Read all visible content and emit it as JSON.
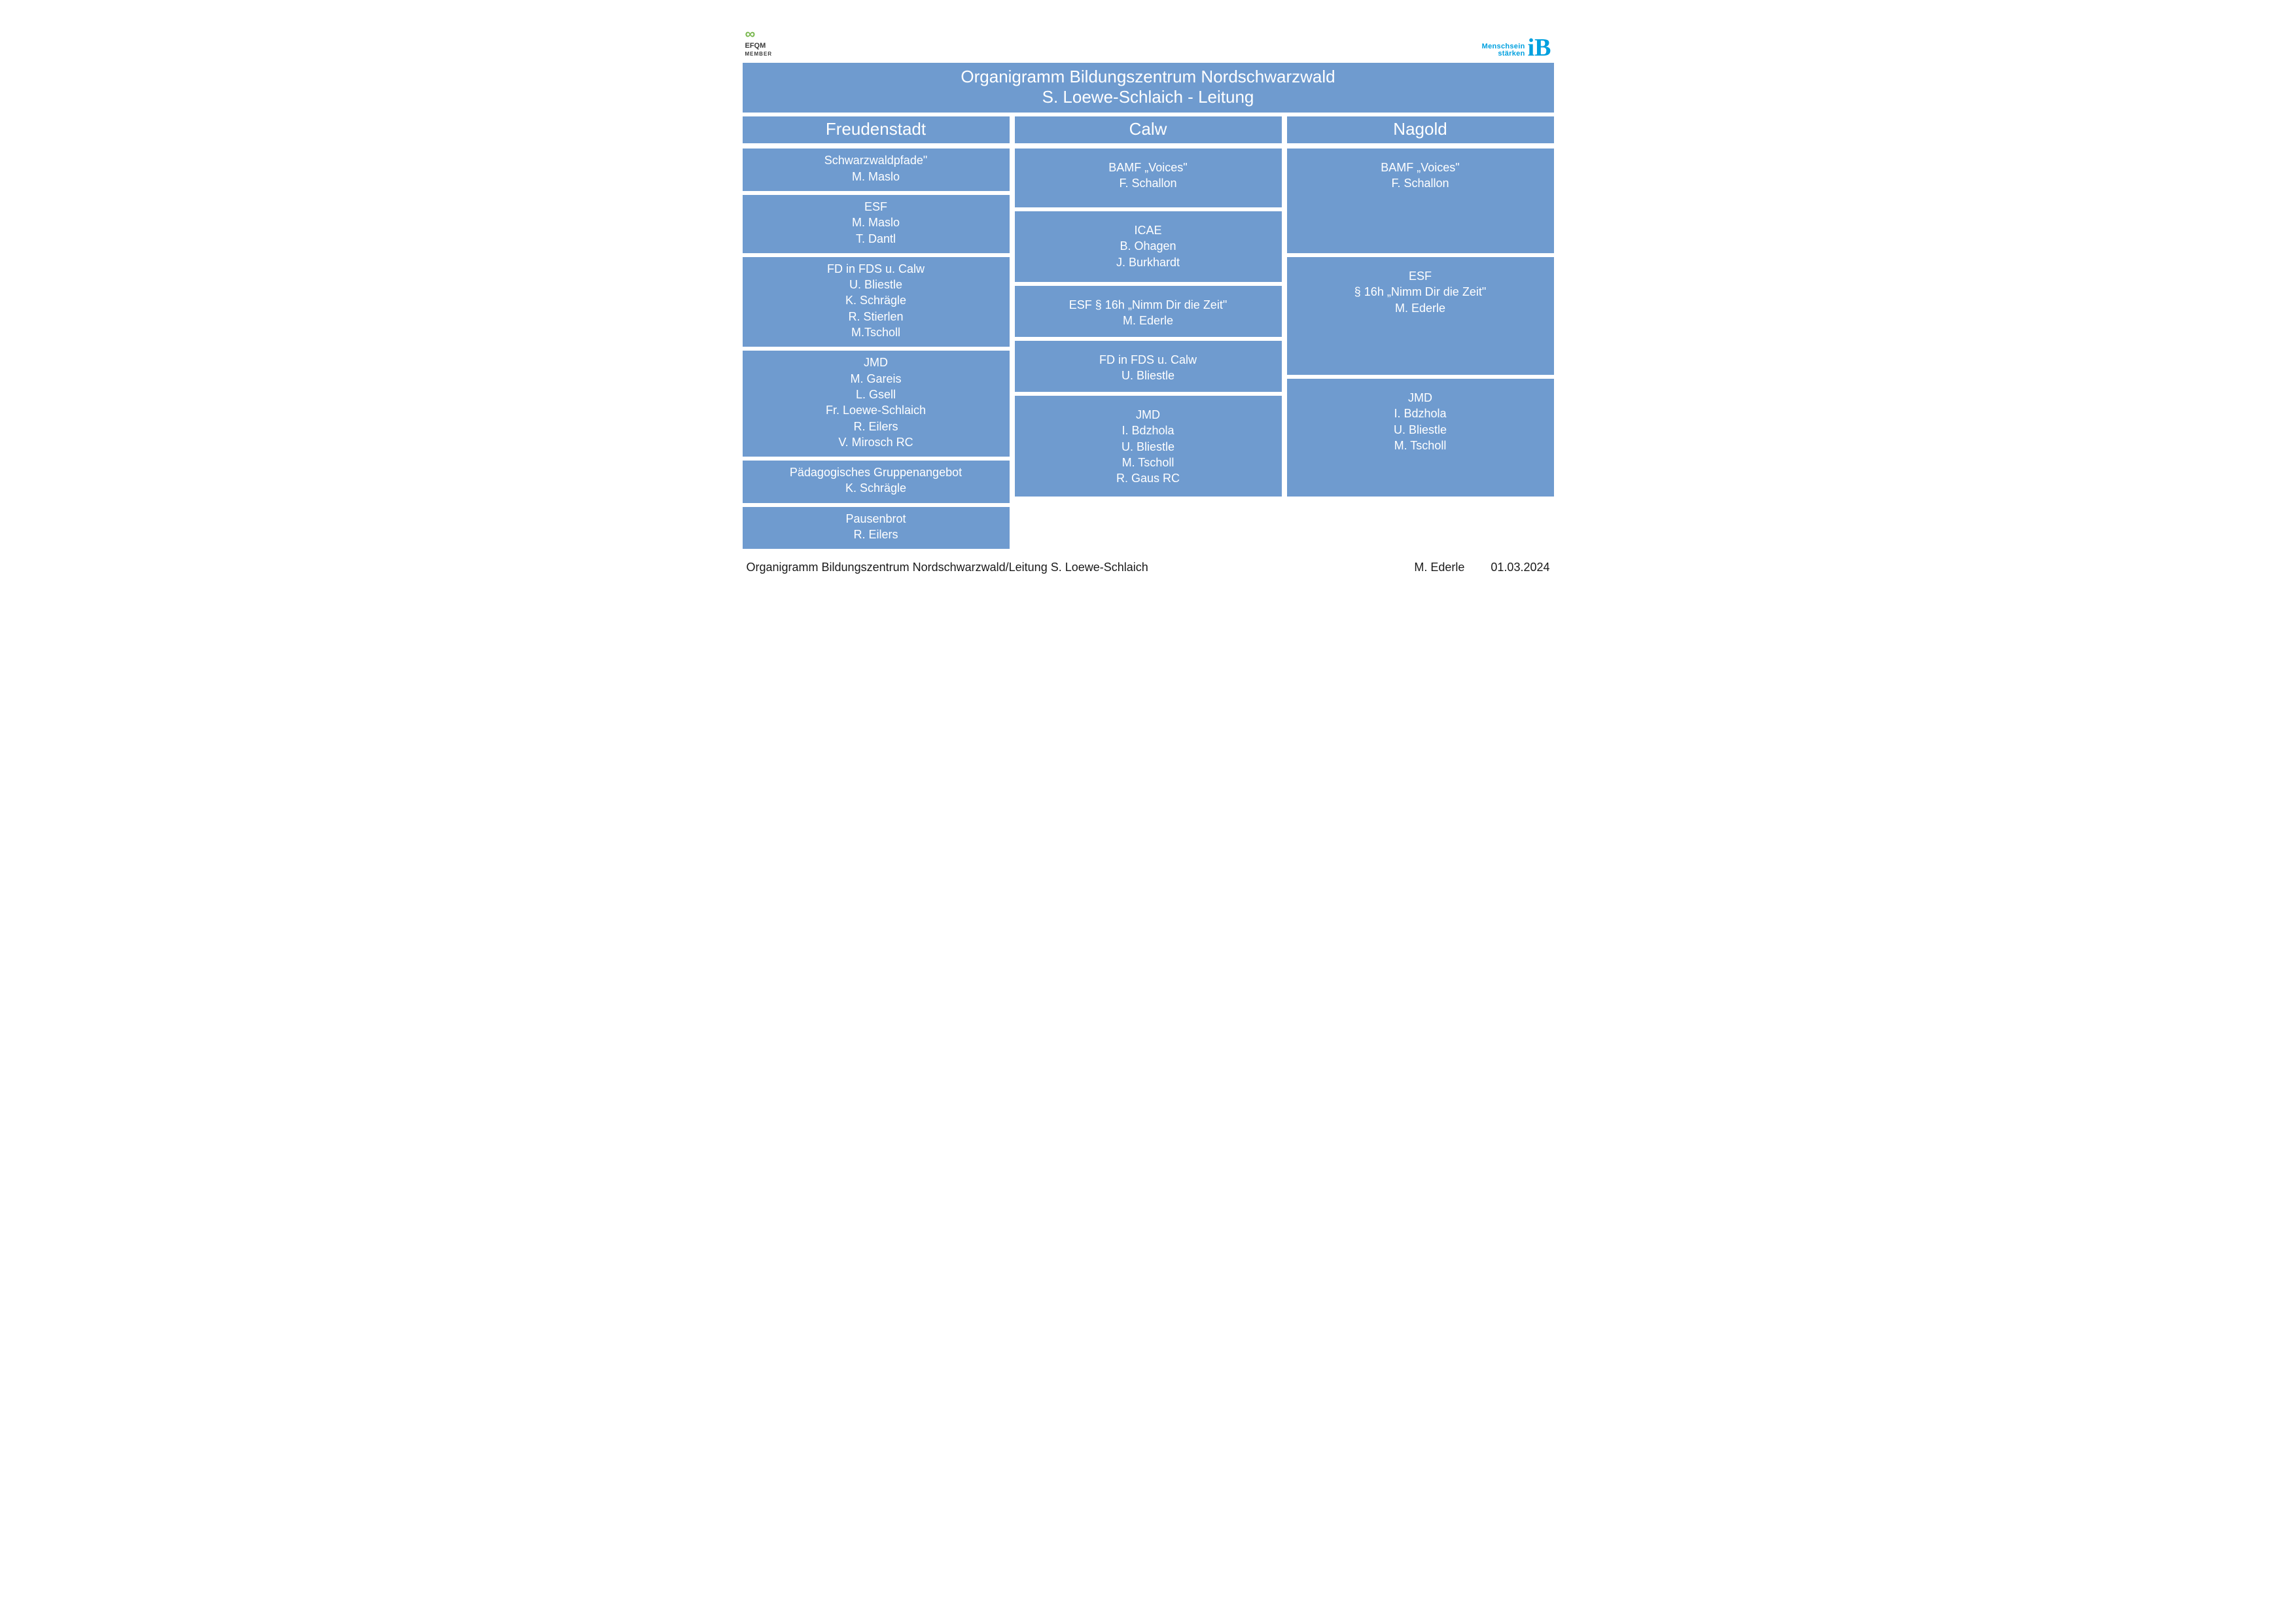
{
  "colors": {
    "box_bg": "#6f9bcf",
    "box_text": "#ffffff",
    "page_bg": "#ffffff",
    "footer_text": "#1a1a1a",
    "ib_blue": "#00a0df"
  },
  "logos": {
    "efqm_top": "∞",
    "efqm_mid": "EFQM",
    "efqm_bot": "MEMBER",
    "ib_line1": "Menschsein",
    "ib_line2": "stärken",
    "ib_letters": "iB"
  },
  "title": {
    "line1": "Organigramm Bildungszentrum Nordschwarzwald",
    "line2": "S. Loewe-Schlaich - Leitung"
  },
  "locations": [
    "Freudenstadt",
    "Calw",
    "Nagold"
  ],
  "cols": {
    "freudenstadt": [
      {
        "lines": [
          "Schwarzwaldpfade\"",
          "M. Maslo"
        ],
        "h": 54
      },
      {
        "lines": [
          "ESF",
          "M. Maslo",
          "T. Dantl"
        ],
        "h": 78
      },
      {
        "lines": [
          "FD in FDS u. Calw",
          "U. Bliestle",
          "K. Schrägle",
          "R. Stierlen",
          "M.Tscholl"
        ],
        "h": 126
      },
      {
        "lines": [
          "JMD",
          "M. Gareis",
          "L. Gsell",
          "Fr. Loewe-Schlaich",
          "R. Eilers",
          "V. Mirosch RC"
        ],
        "h": 150
      },
      {
        "lines": [
          "Pädagogisches Gruppenangebot",
          "K. Schrägle"
        ],
        "h": 54
      },
      {
        "lines": [
          "Pausenbrot",
          "R. Eilers"
        ],
        "h": 50
      }
    ],
    "calw": [
      {
        "lines": [
          "",
          "BAMF „Voices\"",
          "F. Schallon"
        ],
        "h": 90
      },
      {
        "lines": [
          "",
          "ICAE",
          "B. Ohagen",
          "J. Burkhardt"
        ],
        "h": 108
      },
      {
        "lines": [
          "",
          "ESF § 16h „Nimm Dir die Zeit\"",
          "M. Ederle"
        ],
        "h": 78
      },
      {
        "lines": [
          "",
          "FD in FDS u. Calw",
          "U. Bliestle"
        ],
        "h": 78
      },
      {
        "lines": [
          "",
          "JMD",
          "I. Bdzhola",
          "U. Bliestle",
          "M. Tscholl",
          "R. Gaus RC"
        ],
        "h": 154
      }
    ],
    "nagold": [
      {
        "lines": [
          "",
          "BAMF „Voices\"",
          "F. Schallon"
        ],
        "h": 160
      },
      {
        "lines": [
          "",
          "ESF",
          "§ 16h „Nimm Dir die Zeit\"",
          "M. Ederle"
        ],
        "h": 180
      },
      {
        "lines": [
          "",
          "JMD",
          "I. Bdzhola",
          "U. Bliestle",
          "M. Tscholl"
        ],
        "h": 180
      }
    ]
  },
  "footer": {
    "left": "Organigramm Bildungszentrum Nordschwarzwald/Leitung S. Loewe-Schlaich",
    "author": "M. Ederle",
    "date": "01.03.2024"
  },
  "typography": {
    "title_fontsize": 26,
    "loc_fontsize": 26,
    "box_fontsize": 18,
    "footer_fontsize": 18
  }
}
